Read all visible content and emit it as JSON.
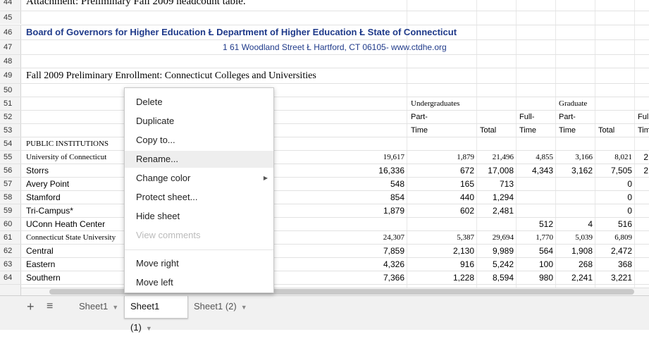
{
  "grid": {
    "rows": [
      "44",
      "45",
      "46",
      "47",
      "48",
      "49",
      "50",
      "51",
      "52",
      "53",
      "54",
      "55",
      "56",
      "57",
      "58",
      "59",
      "60",
      "61",
      "62",
      "63",
      "64"
    ],
    "r44": "Attachment:  Preliminary Fall 2009 headcount table.",
    "r46": "Board of Governors for Higher Education Ł Department of Higher Education Ł State of Connecticut",
    "r47": "1 61 Woodland Street Ł Hartford, CT  06105- www.ctdhe.org",
    "r49": "Fall 2009 Preliminary Enrollment: Connecticut Colleges and Universities",
    "hdr_undergrad": "Undergraduates",
    "hdr_graduate": "Graduate",
    "hdr_part": "Part-",
    "hdr_full": "Full-",
    "hdr_ful_cut": "Ful",
    "hdr_time": "Time",
    "hdr_total": "Total",
    "hdr_tim_cut": "Tim",
    "public_institutions": "PUBLIC INSTITUTIONS",
    "table_rows": [
      {
        "name": "University of Connecticut",
        "c1": "19,617",
        "c2": "1,879",
        "c3": "21,496",
        "c4": "4,855",
        "c5": "3,166",
        "c6": "8,021",
        "c7": "2"
      },
      {
        "name": "Storrs",
        "c1": "16,336",
        "c2": "672",
        "c3": "17,008",
        "c4": "4,343",
        "c5": "3,162",
        "c6": "7,505",
        "c7": "2"
      },
      {
        "name": "Avery Point",
        "c1": "548",
        "c2": "165",
        "c3": "713",
        "c4": "",
        "c5": "",
        "c6": "0",
        "c7": ""
      },
      {
        "name": "Stamford",
        "c1": "854",
        "c2": "440",
        "c3": "1,294",
        "c4": "",
        "c5": "",
        "c6": "0",
        "c7": ""
      },
      {
        "name": "Tri-Campus*",
        "c1": "1,879",
        "c2": "602",
        "c3": "2,481",
        "c4": "",
        "c5": "",
        "c6": "0",
        "c7": ""
      },
      {
        "name": "UConn Heath Center",
        "c1": "",
        "c2": "",
        "c3": "",
        "c4": "512",
        "c5": "4",
        "c6": "516",
        "c7": ""
      },
      {
        "name": "Connecticut State University",
        "c1": "24,307",
        "c2": "5,387",
        "c3": "29,694",
        "c4": "1,770",
        "c5": "5,039",
        "c6": "6,809",
        "c7": ""
      },
      {
        "name": "Central",
        "c1": "7,859",
        "c2": "2,130",
        "c3": "9,989",
        "c4": "564",
        "c5": "1,908",
        "c6": "2,472",
        "c7": ""
      },
      {
        "name": "Eastern",
        "c1": "4,326",
        "c2": "916",
        "c3": "5,242",
        "c4": "100",
        "c5": "268",
        "c6": "368",
        "c7": ""
      },
      {
        "name": "Southern",
        "c1": "7,366",
        "c2": "1,228",
        "c3": "8,594",
        "c4": "980",
        "c5": "2,241",
        "c6": "3,221",
        "c7": ""
      }
    ]
  },
  "context_menu": {
    "items": [
      {
        "label": "Delete"
      },
      {
        "label": "Duplicate"
      },
      {
        "label": "Copy to..."
      },
      {
        "label": "Rename..."
      },
      {
        "label": "Change color"
      },
      {
        "label": "Protect sheet..."
      },
      {
        "label": "Hide sheet"
      },
      {
        "label": "View comments"
      },
      {
        "label": "Move right"
      },
      {
        "label": "Move left"
      }
    ]
  },
  "tabs": {
    "add": "+",
    "list": "≡",
    "sheets": [
      {
        "label": "Sheet1"
      },
      {
        "label": "Sheet1 (1)"
      },
      {
        "label": "Sheet1 (2)"
      }
    ]
  }
}
